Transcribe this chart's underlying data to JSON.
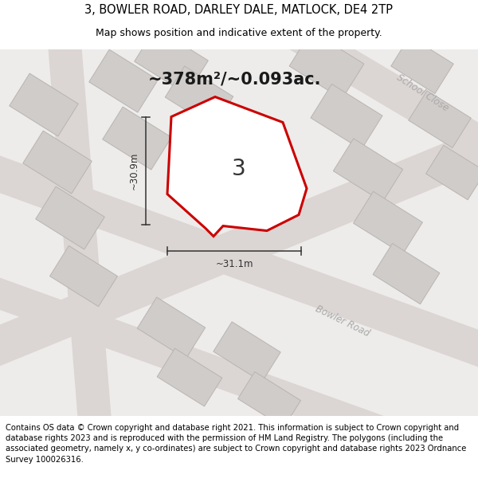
{
  "title": "3, BOWLER ROAD, DARLEY DALE, MATLOCK, DE4 2TP",
  "subtitle": "Map shows position and indicative extent of the property.",
  "footer_lines": [
    "Contains OS data © Crown copyright and database right 2021. This information is subject to Crown copyright and database rights 2023 and is reproduced with the permission of",
    "HM Land Registry. The polygons (including the associated geometry, namely x, y co-ordinates) are subject to Crown copyright and database rights 2023 Ordnance Survey",
    "100026316."
  ],
  "area_text": "~378m²/~0.093ac.",
  "property_label": "3",
  "dim_width": "~31.1m",
  "dim_height": "~30.9m",
  "school_close_label": "School Close",
  "bowler_road_label": "Bowler Road",
  "map_bg": "#edecea",
  "road_color": "#dbd5d3",
  "building_color": "#d0ccca",
  "building_edge": "#b8b4b2",
  "property_fill": "#ffffff",
  "property_edge": "#cc0000",
  "road_label_color": "#aaaaaa",
  "title_fontsize": 10.5,
  "subtitle_fontsize": 9,
  "footer_fontsize": 7.2,
  "area_fontsize": 15,
  "label_fontsize": 20,
  "dim_fontsize": 8.5
}
